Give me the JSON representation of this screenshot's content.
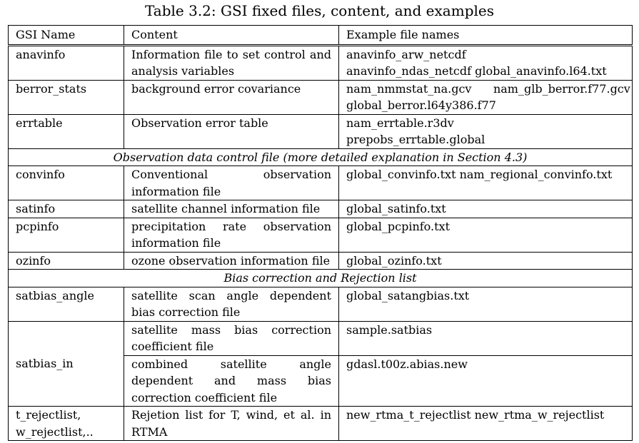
{
  "caption": "Table 3.2: GSI fixed files, content, and examples",
  "headers": [
    "GSI Name",
    "Content",
    "Example file names"
  ],
  "rows": {
    "anavinfo": {
      "name": "anavinfo",
      "content": "Information file to set control and analysis variables",
      "examples": [
        "anavinfo_arw_netcdf",
        "anavinfo_ndas_netcdf global_anavinfo.l64.txt"
      ]
    },
    "berror_stats": {
      "name": "berror_stats",
      "content": "background error covariance",
      "examples": [
        "nam_nmmstat_na.gcv      nam_glb_berror.f77.gcv",
        "global_berror.l64y386.f77"
      ]
    },
    "errtable": {
      "name": "errtable",
      "content": "Observation error table",
      "examples": [
        "nam_errtable.r3dv",
        "prepobs_errtable.global"
      ]
    },
    "section_obs": "Observation data control file (more detailed explanation in Section 4.3)",
    "convinfo": {
      "name": "convinfo",
      "content": "Conventional observation information file",
      "examples": [
        "global_convinfo.txt nam_regional_convinfo.txt"
      ]
    },
    "satinfo": {
      "name": "satinfo",
      "content": "satellite channel information file",
      "examples": [
        "global_satinfo.txt"
      ]
    },
    "pcpinfo": {
      "name": "pcpinfo",
      "content": "precipitation rate observation information file",
      "examples": [
        "global_pcpinfo.txt"
      ]
    },
    "ozinfo": {
      "name": "ozinfo",
      "content": "ozone observation information file",
      "examples": [
        "global_ozinfo.txt"
      ]
    },
    "section_bias": "Bias correction and Rejection list",
    "satbias_angle": {
      "name": "satbias_angle",
      "content": "satellite scan angle dependent bias correction file",
      "examples": [
        "global_satangbias.txt"
      ]
    },
    "satbias_in": {
      "name": "satbias_in",
      "content_a": "satellite mass bias correction coefficient file",
      "examples_a": [
        "sample.satbias"
      ],
      "content_b": "combined satellite angle dependent and mass bias correction coefficient file",
      "examples_b": [
        "gdasl.t00z.abias.new"
      ]
    },
    "t_rejectlist": {
      "name_lines": [
        "t_rejectlist,",
        "w_rejectlist,.."
      ],
      "content": "Rejetion list for T, wind, et al. in RTMA",
      "examples": [
        "new_rtma_t_rejectlist new_rtma_w_rejectlist"
      ]
    }
  }
}
